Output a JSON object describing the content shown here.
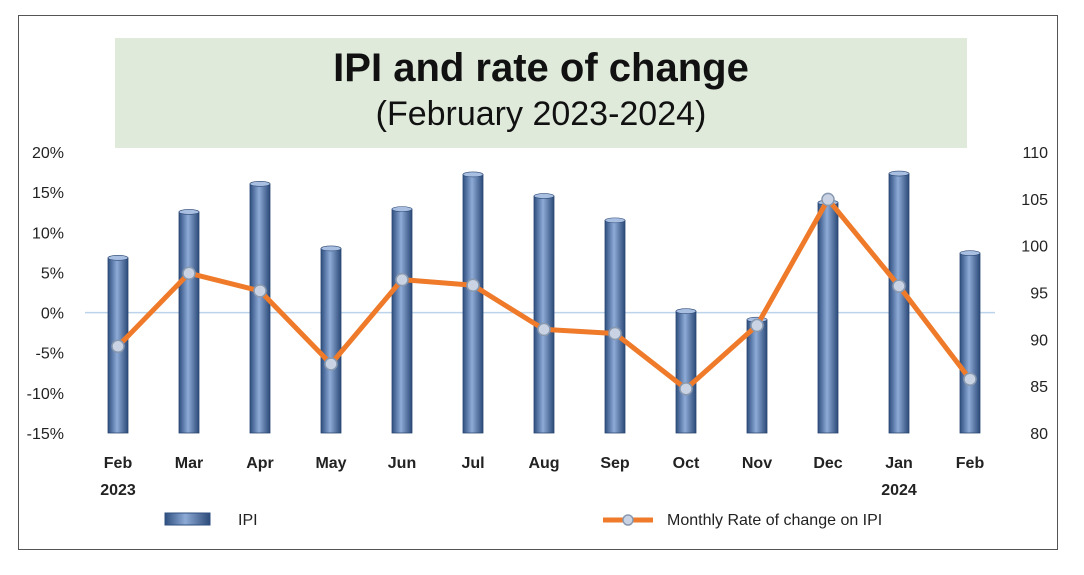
{
  "chart_data": {
    "type": "bar+line",
    "title": "IPI and rate of change",
    "subtitle": "(February 2023-2024)",
    "categories": [
      "Feb",
      "Mar",
      "Apr",
      "May",
      "Jun",
      "Jul",
      "Aug",
      "Sep",
      "Oct",
      "Nov",
      "Dec",
      "Jan",
      "Feb"
    ],
    "year_labels": {
      "0": "2023",
      "11": "2024"
    },
    "series": [
      {
        "name": "IPI",
        "kind": "bar",
        "axis": "right",
        "color": "#4a6fa5",
        "values": [
          98.7,
          103.6,
          106.6,
          99.7,
          103.9,
          107.6,
          105.3,
          102.7,
          93.0,
          92.1,
          104.6,
          107.7,
          99.2
        ]
      },
      {
        "name": "Monthly Rate of change on IPI",
        "kind": "line",
        "axis": "left",
        "color": "#ee7a2a",
        "values": [
          -4.2,
          4.9,
          2.7,
          -6.4,
          4.1,
          3.4,
          -2.1,
          -2.6,
          -9.5,
          -1.6,
          14.1,
          3.3,
          -8.3
        ]
      }
    ],
    "left_axis": {
      "min": -15,
      "max": 20,
      "step": 5,
      "ticks": [
        "-15%",
        "-10%",
        "-5%",
        "0%",
        "5%",
        "10%",
        "15%",
        "20%"
      ]
    },
    "right_axis": {
      "min": 80,
      "max": 110,
      "step": 5,
      "ticks": [
        "80",
        "85",
        "90",
        "95",
        "100",
        "105",
        "110"
      ]
    },
    "legend": [
      "IPI",
      "Monthly Rate of change on IPI"
    ],
    "legend_position": "bottom"
  }
}
